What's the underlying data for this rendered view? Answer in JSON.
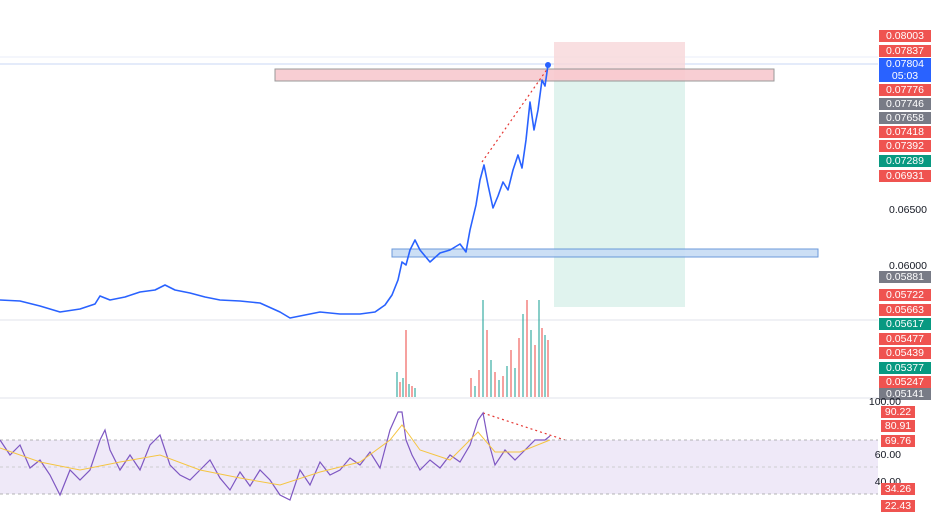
{
  "colors": {
    "price_line": "#2962ff",
    "up": "#26a69a",
    "down": "#ef5350",
    "rsi_line": "#7e57c2",
    "rsi_ma": "#f5c542",
    "rsi_band": "#efe9f8",
    "stop_zone": "#f8d7da",
    "target_zone": "#ddf2ec",
    "blue_zone": "#c7dcf5",
    "trend_dotted": "#e53935"
  },
  "price_axis": {
    "levels": [
      {
        "value": "0.08003",
        "color": "#ef5350"
      },
      {
        "value": "0.07837",
        "color": "#ef5350"
      },
      {
        "value": "0.07804",
        "color": "#2962ff"
      },
      {
        "value": "05:03",
        "color": "#2962ff"
      },
      {
        "value": "0.07776",
        "color": "#ef5350"
      },
      {
        "value": "0.07746",
        "color": "#787b86"
      },
      {
        "value": "0.07658",
        "color": "#787b86"
      },
      {
        "value": "0.07418",
        "color": "#ef5350"
      },
      {
        "value": "0.07392",
        "color": "#ef5350"
      },
      {
        "value": "0.07289",
        "color": "#089981"
      },
      {
        "value": "0.06931",
        "color": "#ef5350"
      },
      {
        "value": "0.05881",
        "color": "#787b86"
      },
      {
        "value": "0.05722",
        "color": "#ef5350"
      },
      {
        "value": "0.05663",
        "color": "#ef5350"
      },
      {
        "value": "0.05617",
        "color": "#089981"
      },
      {
        "value": "0.05477",
        "color": "#ef5350"
      },
      {
        "value": "0.05439",
        "color": "#ef5350"
      },
      {
        "value": "0.05377",
        "color": "#089981"
      },
      {
        "value": "0.05247",
        "color": "#ef5350"
      },
      {
        "value": "0.05141",
        "color": "#787b86"
      }
    ],
    "plain": [
      "0.06500",
      "0.06000"
    ]
  },
  "rsi_axis": {
    "plain": [
      "100.00",
      "60.00",
      "40.00"
    ],
    "levels": [
      {
        "value": "90.22",
        "color": "#ef5350"
      },
      {
        "value": "80.91",
        "color": "#ef5350"
      },
      {
        "value": "69.76",
        "color": "#ef5350"
      },
      {
        "value": "34.26",
        "color": "#ef5350"
      },
      {
        "value": "22.43",
        "color": "#ef5350"
      }
    ]
  }
}
